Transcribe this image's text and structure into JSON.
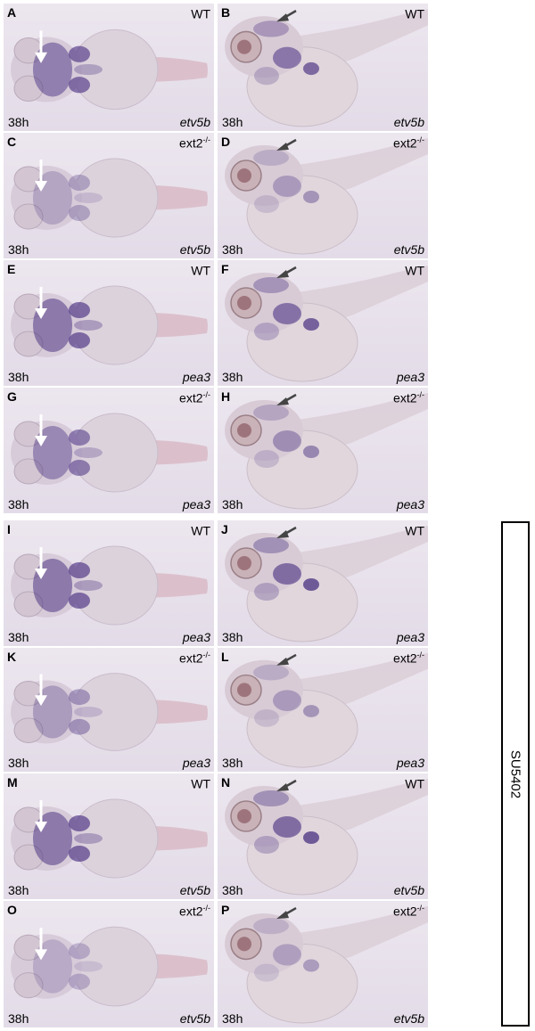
{
  "panels": [
    {
      "letter": "A",
      "genotype_base": "WT",
      "genotype_sup": "",
      "time": "38h",
      "gene": "etv5b"
    },
    {
      "letter": "B",
      "genotype_base": "WT",
      "genotype_sup": "",
      "time": "38h",
      "gene": "etv5b"
    },
    {
      "letter": "C",
      "genotype_base": "ext2",
      "genotype_sup": "-/-",
      "time": "38h",
      "gene": "etv5b"
    },
    {
      "letter": "D",
      "genotype_base": "ext2",
      "genotype_sup": "-/-",
      "time": "38h",
      "gene": "etv5b"
    },
    {
      "letter": "E",
      "genotype_base": "WT",
      "genotype_sup": "",
      "time": "38h",
      "gene": "pea3"
    },
    {
      "letter": "F",
      "genotype_base": "WT",
      "genotype_sup": "",
      "time": "38h",
      "gene": "pea3"
    },
    {
      "letter": "G",
      "genotype_base": "ext2",
      "genotype_sup": "-/-",
      "time": "38h",
      "gene": "pea3"
    },
    {
      "letter": "H",
      "genotype_base": "ext2",
      "genotype_sup": "-/-",
      "time": "38h",
      "gene": "pea3"
    },
    {
      "letter": "I",
      "genotype_base": "WT",
      "genotype_sup": "",
      "time": "38h",
      "gene": "pea3"
    },
    {
      "letter": "J",
      "genotype_base": "WT",
      "genotype_sup": "",
      "time": "38h",
      "gene": "pea3"
    },
    {
      "letter": "K",
      "genotype_base": "ext2",
      "genotype_sup": "-/-",
      "time": "38h",
      "gene": "pea3"
    },
    {
      "letter": "L",
      "genotype_base": "ext2",
      "genotype_sup": "-/-",
      "time": "38h",
      "gene": "pea3"
    },
    {
      "letter": "M",
      "genotype_base": "WT",
      "genotype_sup": "",
      "time": "38h",
      "gene": "etv5b"
    },
    {
      "letter": "N",
      "genotype_base": "WT",
      "genotype_sup": "",
      "time": "38h",
      "gene": "etv5b"
    },
    {
      "letter": "O",
      "genotype_base": "ext2",
      "genotype_sup": "-/-",
      "time": "38h",
      "gene": "etv5b"
    },
    {
      "letter": "P",
      "genotype_base": "ext2",
      "genotype_sup": "-/-",
      "time": "38h",
      "gene": "etv5b"
    }
  ],
  "treatment_label": "SU5402",
  "colors": {
    "stain": "#3a1f78",
    "background": "#e8e2ec",
    "arrow_white": "#ffffff",
    "arrow_dark": "#444444"
  }
}
